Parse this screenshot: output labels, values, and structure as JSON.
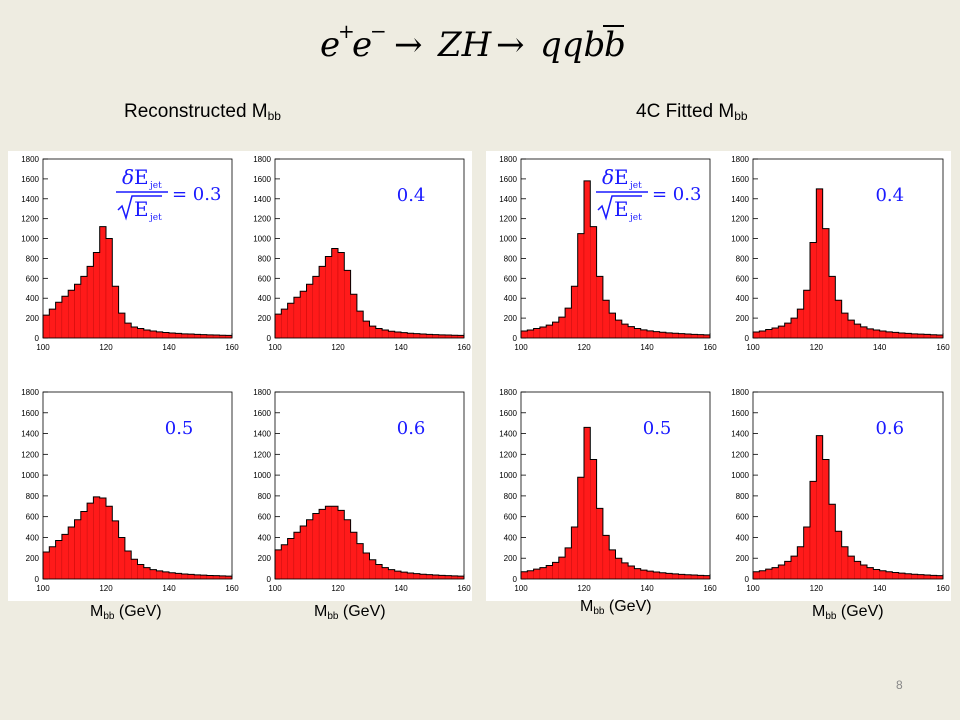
{
  "slide": {
    "formula": {
      "e": "e",
      "sup_plus": "+",
      "sup_minus": "−",
      "arrow": "→",
      "zh": "ZH",
      "qqb": "qqb",
      "b": "b"
    },
    "left_title": {
      "main": "Reconstructed M",
      "sub": "bb"
    },
    "right_title": {
      "main": "4C Fitted M",
      "sub": "bb"
    },
    "resolution_formula": {
      "delta": "δ",
      "E": "E",
      "jet": "jet",
      "eq": "= 0.3"
    },
    "xlabel": {
      "main": "M",
      "sub": "bb",
      "unit": " (GeV)"
    },
    "page_number": "8"
  },
  "colors": {
    "background": "#eeece1",
    "fill": "#ff1a1a",
    "edge": "#000000",
    "annotation": "#1a1aff",
    "panel": "#ffffff"
  },
  "chart_data": [
    {
      "type": "bar",
      "group": "Reconstructed",
      "label": "0.3",
      "ylim": [
        0,
        1800
      ],
      "xlim": [
        100,
        160
      ],
      "xticks": [
        100,
        120,
        140,
        160
      ],
      "yticks": [
        0,
        200,
        400,
        600,
        800,
        1000,
        1200,
        1400,
        1600,
        1800
      ],
      "x": [
        100,
        102,
        104,
        106,
        108,
        110,
        112,
        114,
        116,
        118,
        120,
        122,
        124,
        126,
        128,
        130,
        132,
        134,
        136,
        138,
        140,
        142,
        144,
        146,
        148,
        150,
        152,
        154,
        156,
        158
      ],
      "values": [
        230,
        290,
        360,
        420,
        480,
        540,
        620,
        720,
        860,
        1120,
        1000,
        520,
        250,
        150,
        110,
        95,
        80,
        70,
        62,
        55,
        50,
        46,
        42,
        40,
        36,
        34,
        32,
        30,
        28,
        26
      ]
    },
    {
      "type": "bar",
      "group": "Reconstructed",
      "label": "0.4",
      "ylim": [
        0,
        1800
      ],
      "xlim": [
        100,
        160
      ],
      "xticks": [
        100,
        120,
        140,
        160
      ],
      "yticks": [
        0,
        200,
        400,
        600,
        800,
        1000,
        1200,
        1400,
        1600,
        1800
      ],
      "x": [
        100,
        102,
        104,
        106,
        108,
        110,
        112,
        114,
        116,
        118,
        120,
        122,
        124,
        126,
        128,
        130,
        132,
        134,
        136,
        138,
        140,
        142,
        144,
        146,
        148,
        150,
        152,
        154,
        156,
        158
      ],
      "values": [
        240,
        290,
        350,
        410,
        470,
        540,
        620,
        720,
        820,
        900,
        860,
        680,
        440,
        270,
        170,
        120,
        95,
        80,
        68,
        60,
        54,
        48,
        44,
        40,
        37,
        34,
        32,
        30,
        28,
        26
      ]
    },
    {
      "type": "bar",
      "group": "Reconstructed",
      "label": "0.5",
      "ylim": [
        0,
        1800
      ],
      "xlim": [
        100,
        160
      ],
      "xticks": [
        100,
        120,
        140,
        160
      ],
      "yticks": [
        0,
        200,
        400,
        600,
        800,
        1000,
        1200,
        1400,
        1600,
        1800
      ],
      "x": [
        100,
        102,
        104,
        106,
        108,
        110,
        112,
        114,
        116,
        118,
        120,
        122,
        124,
        126,
        128,
        130,
        132,
        134,
        136,
        138,
        140,
        142,
        144,
        146,
        148,
        150,
        152,
        154,
        156,
        158
      ],
      "values": [
        260,
        310,
        370,
        430,
        500,
        570,
        650,
        730,
        790,
        780,
        700,
        560,
        400,
        270,
        190,
        140,
        110,
        90,
        78,
        68,
        60,
        54,
        48,
        44,
        40,
        37,
        34,
        32,
        30,
        28
      ]
    },
    {
      "type": "bar",
      "group": "Reconstructed",
      "label": "0.6",
      "ylim": [
        0,
        1800
      ],
      "xlim": [
        100,
        160
      ],
      "xticks": [
        100,
        120,
        140,
        160
      ],
      "yticks": [
        0,
        200,
        400,
        600,
        800,
        1000,
        1200,
        1400,
        1600,
        1800
      ],
      "x": [
        100,
        102,
        104,
        106,
        108,
        110,
        112,
        114,
        116,
        118,
        120,
        122,
        124,
        126,
        128,
        130,
        132,
        134,
        136,
        138,
        140,
        142,
        144,
        146,
        148,
        150,
        152,
        154,
        156,
        158
      ],
      "values": [
        280,
        330,
        390,
        450,
        510,
        570,
        630,
        670,
        700,
        700,
        660,
        570,
        450,
        340,
        250,
        185,
        140,
        110,
        90,
        76,
        66,
        58,
        52,
        46,
        42,
        38,
        35,
        32,
        30,
        28
      ]
    },
    {
      "type": "bar",
      "group": "4C Fitted",
      "label": "0.3",
      "ylim": [
        0,
        1800
      ],
      "xlim": [
        100,
        160
      ],
      "xticks": [
        100,
        120,
        140,
        160
      ],
      "yticks": [
        0,
        200,
        400,
        600,
        800,
        1000,
        1200,
        1400,
        1600,
        1800
      ],
      "x": [
        100,
        102,
        104,
        106,
        108,
        110,
        112,
        114,
        116,
        118,
        120,
        122,
        124,
        126,
        128,
        130,
        132,
        134,
        136,
        138,
        140,
        142,
        144,
        146,
        148,
        150,
        152,
        154,
        156,
        158
      ],
      "values": [
        70,
        80,
        95,
        110,
        130,
        160,
        210,
        300,
        520,
        1050,
        1580,
        1120,
        620,
        380,
        250,
        180,
        140,
        115,
        95,
        82,
        72,
        64,
        58,
        52,
        48,
        44,
        40,
        37,
        34,
        32
      ]
    },
    {
      "type": "bar",
      "group": "4C Fitted",
      "label": "0.4",
      "ylim": [
        0,
        1800
      ],
      "xlim": [
        100,
        160
      ],
      "xticks": [
        100,
        120,
        140,
        160
      ],
      "yticks": [
        0,
        200,
        400,
        600,
        800,
        1000,
        1200,
        1400,
        1600,
        1800
      ],
      "x": [
        100,
        102,
        104,
        106,
        108,
        110,
        112,
        114,
        116,
        118,
        120,
        122,
        124,
        126,
        128,
        130,
        132,
        134,
        136,
        138,
        140,
        142,
        144,
        146,
        148,
        150,
        152,
        154,
        156,
        158
      ],
      "values": [
        60,
        70,
        85,
        100,
        120,
        150,
        200,
        290,
        480,
        960,
        1500,
        1100,
        620,
        380,
        250,
        180,
        140,
        112,
        92,
        80,
        70,
        62,
        56,
        50,
        46,
        42,
        39,
        36,
        33,
        30
      ]
    },
    {
      "type": "bar",
      "group": "4C Fitted",
      "label": "0.5",
      "ylim": [
        0,
        1800
      ],
      "xlim": [
        100,
        160
      ],
      "xticks": [
        100,
        120,
        140,
        160
      ],
      "yticks": [
        0,
        200,
        400,
        600,
        800,
        1000,
        1200,
        1400,
        1600,
        1800
      ],
      "x": [
        100,
        102,
        104,
        106,
        108,
        110,
        112,
        114,
        116,
        118,
        120,
        122,
        124,
        126,
        128,
        130,
        132,
        134,
        136,
        138,
        140,
        142,
        144,
        146,
        148,
        150,
        152,
        154,
        156,
        158
      ],
      "values": [
        70,
        80,
        95,
        110,
        130,
        160,
        210,
        300,
        500,
        980,
        1460,
        1150,
        680,
        420,
        280,
        200,
        155,
        125,
        100,
        86,
        76,
        67,
        60,
        54,
        49,
        45,
        41,
        38,
        35,
        32
      ]
    },
    {
      "type": "bar",
      "group": "4C Fitted",
      "label": "0.6",
      "ylim": [
        0,
        1800
      ],
      "xlim": [
        100,
        160
      ],
      "xticks": [
        100,
        120,
        140,
        160
      ],
      "yticks": [
        0,
        200,
        400,
        600,
        800,
        1000,
        1200,
        1400,
        1600,
        1800
      ],
      "x": [
        100,
        102,
        104,
        106,
        108,
        110,
        112,
        114,
        116,
        118,
        120,
        122,
        124,
        126,
        128,
        130,
        132,
        134,
        136,
        138,
        140,
        142,
        144,
        146,
        148,
        150,
        152,
        154,
        156,
        158
      ],
      "values": [
        70,
        80,
        95,
        110,
        135,
        170,
        220,
        310,
        500,
        940,
        1380,
        1150,
        720,
        460,
        310,
        220,
        170,
        135,
        110,
        92,
        80,
        70,
        62,
        56,
        50,
        46,
        42,
        38,
        35,
        32
      ]
    }
  ]
}
